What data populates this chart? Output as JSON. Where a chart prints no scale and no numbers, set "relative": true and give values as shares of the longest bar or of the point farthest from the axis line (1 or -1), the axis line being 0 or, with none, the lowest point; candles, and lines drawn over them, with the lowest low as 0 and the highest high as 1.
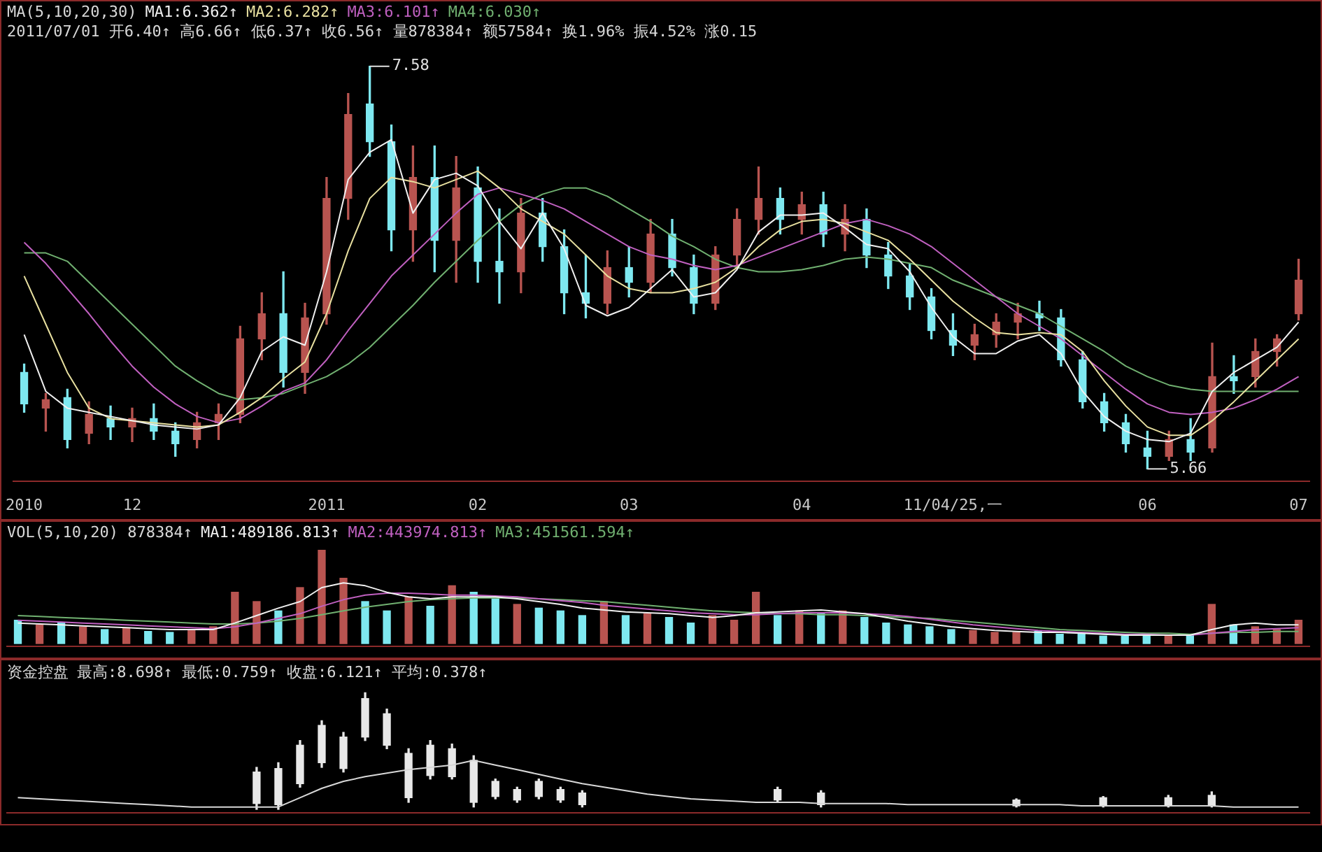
{
  "chart_data": [
    {
      "type": "candlestick",
      "title": "MA(5,10,20,30)",
      "subtitle": "2011/07/01 开6.40↑ 高6.66↑ 低6.37↑ 收6.56↑ 量878384↑ 额57584↑ 换1.96% 振4.52% 涨0.15",
      "legend": "top left",
      "tick_labels": "x",
      "categories": [
        "2010",
        null,
        null,
        null,
        null,
        "12",
        null,
        null,
        null,
        null,
        null,
        null,
        null,
        null,
        "2011",
        null,
        null,
        null,
        null,
        null,
        null,
        "02",
        null,
        null,
        null,
        null,
        null,
        null,
        "03",
        null,
        null,
        null,
        null,
        null,
        null,
        null,
        "04",
        null,
        null,
        null,
        null,
        null,
        null,
        "11/04/25,一",
        null,
        null,
        null,
        null,
        null,
        null,
        null,
        null,
        "06",
        null,
        null,
        null,
        null,
        null,
        null,
        "07"
      ],
      "ohlc": [
        [
          6.12,
          6.16,
          5.93,
          5.97
        ],
        [
          5.95,
          6.02,
          5.84,
          5.99
        ],
        [
          6.0,
          6.04,
          5.76,
          5.8
        ],
        [
          5.83,
          5.98,
          5.78,
          5.92
        ],
        [
          5.9,
          5.96,
          5.8,
          5.86
        ],
        [
          5.86,
          5.95,
          5.79,
          5.9
        ],
        [
          5.9,
          5.97,
          5.8,
          5.84
        ],
        [
          5.84,
          5.88,
          5.72,
          5.78
        ],
        [
          5.8,
          5.93,
          5.76,
          5.88
        ],
        [
          5.88,
          5.97,
          5.8,
          5.92
        ],
        [
          5.92,
          6.34,
          5.88,
          6.28
        ],
        [
          6.28,
          6.5,
          6.18,
          6.4
        ],
        [
          6.4,
          6.6,
          6.05,
          6.12
        ],
        [
          6.12,
          6.45,
          6.02,
          6.38
        ],
        [
          6.4,
          7.05,
          6.35,
          6.95
        ],
        [
          6.95,
          7.45,
          6.85,
          7.35
        ],
        [
          7.4,
          7.58,
          7.15,
          7.22
        ],
        [
          7.22,
          7.3,
          6.7,
          6.8
        ],
        [
          6.8,
          7.2,
          6.65,
          7.05
        ],
        [
          7.05,
          7.2,
          6.6,
          6.75
        ],
        [
          6.75,
          7.15,
          6.55,
          7.0
        ],
        [
          7.0,
          7.1,
          6.55,
          6.65
        ],
        [
          6.65,
          6.9,
          6.45,
          6.6
        ],
        [
          6.6,
          6.95,
          6.5,
          6.88
        ],
        [
          6.88,
          6.95,
          6.65,
          6.72
        ],
        [
          6.72,
          6.8,
          6.4,
          6.5
        ],
        [
          6.5,
          6.68,
          6.38,
          6.45
        ],
        [
          6.45,
          6.7,
          6.4,
          6.62
        ],
        [
          6.62,
          6.72,
          6.48,
          6.55
        ],
        [
          6.55,
          6.85,
          6.5,
          6.78
        ],
        [
          6.78,
          6.85,
          6.58,
          6.62
        ],
        [
          6.62,
          6.68,
          6.4,
          6.45
        ],
        [
          6.45,
          6.72,
          6.42,
          6.68
        ],
        [
          6.68,
          6.9,
          6.62,
          6.85
        ],
        [
          6.85,
          7.1,
          6.78,
          6.95
        ],
        [
          6.95,
          7.0,
          6.78,
          6.85
        ],
        [
          6.85,
          6.98,
          6.78,
          6.92
        ],
        [
          6.92,
          6.98,
          6.72,
          6.78
        ],
        [
          6.78,
          6.92,
          6.7,
          6.85
        ],
        [
          6.85,
          6.9,
          6.62,
          6.68
        ],
        [
          6.68,
          6.74,
          6.52,
          6.58
        ],
        [
          6.58,
          6.64,
          6.42,
          6.48
        ],
        [
          6.48,
          6.52,
          6.28,
          6.32
        ],
        [
          6.32,
          6.4,
          6.2,
          6.25
        ],
        [
          6.25,
          6.35,
          6.18,
          6.3
        ],
        [
          6.3,
          6.4,
          6.24,
          6.36
        ],
        [
          6.36,
          6.45,
          6.28,
          6.4
        ],
        [
          6.4,
          6.46,
          6.32,
          6.38
        ],
        [
          6.38,
          6.42,
          6.15,
          6.18
        ],
        [
          6.18,
          6.22,
          5.95,
          5.98
        ],
        [
          5.98,
          6.02,
          5.84,
          5.88
        ],
        [
          5.88,
          5.92,
          5.74,
          5.78
        ],
        [
          5.76,
          5.84,
          5.66,
          5.72
        ],
        [
          5.72,
          5.84,
          5.7,
          5.8
        ],
        [
          5.8,
          5.9,
          5.7,
          5.74
        ],
        [
          5.76,
          6.26,
          5.74,
          6.1
        ],
        [
          6.1,
          6.2,
          6.02,
          6.08
        ],
        [
          6.1,
          6.28,
          6.05,
          6.22
        ],
        [
          6.22,
          6.3,
          6.15,
          6.28
        ],
        [
          6.4,
          6.66,
          6.37,
          6.56
        ]
      ],
      "colors": [
        "#7ee8f0",
        "#b85450",
        "#7ee8f0",
        "#b85450",
        "#7ee8f0",
        "#b85450",
        "#7ee8f0",
        "#7ee8f0",
        "#b85450",
        "#b85450",
        "#b85450",
        "#b85450",
        "#7ee8f0",
        "#b85450",
        "#b85450",
        "#b85450",
        "#7ee8f0",
        "#7ee8f0",
        "#b85450",
        "#7ee8f0",
        "#b85450",
        "#7ee8f0",
        "#7ee8f0",
        "#b85450",
        "#7ee8f0",
        "#7ee8f0",
        "#7ee8f0",
        "#b85450",
        "#7ee8f0",
        "#b85450",
        "#7ee8f0",
        "#7ee8f0",
        "#b85450",
        "#b85450",
        "#b85450",
        "#7ee8f0",
        "#b85450",
        "#7ee8f0",
        "#b85450",
        "#7ee8f0",
        "#7ee8f0",
        "#7ee8f0",
        "#7ee8f0",
        "#7ee8f0",
        "#b85450",
        "#b85450",
        "#b85450",
        "#7ee8f0",
        "#7ee8f0",
        "#7ee8f0",
        "#7ee8f0",
        "#7ee8f0",
        "#7ee8f0",
        "#b85450",
        "#7ee8f0",
        "#b85450",
        "#7ee8f0",
        "#b85450",
        "#b85450",
        "#b85450"
      ],
      "series": [
        {
          "type": "line",
          "name": "MA1:6.362↑",
          "color": "#f0f0f0",
          "values": [
            6.3,
            6.03,
            5.95,
            5.93,
            5.91,
            5.89,
            5.87,
            5.86,
            5.85,
            5.87,
            6.0,
            6.22,
            6.29,
            6.25,
            6.6,
            7.04,
            7.17,
            7.23,
            6.88,
            7.04,
            7.07,
            7.01,
            6.84,
            6.71,
            6.88,
            6.71,
            6.44,
            6.39,
            6.43,
            6.52,
            6.61,
            6.48,
            6.5,
            6.61,
            6.79,
            6.87,
            6.87,
            6.88,
            6.81,
            6.73,
            6.71,
            6.6,
            6.43,
            6.29,
            6.21,
            6.21,
            6.27,
            6.3,
            6.21,
            6.03,
            5.91,
            5.84,
            5.8,
            5.79,
            5.83,
            6.03,
            6.12,
            6.18,
            6.24,
            6.36
          ]
        },
        {
          "type": "line",
          "name": "MA2:6.282↑",
          "color": "#e8e0a0",
          "values": [
            6.58,
            6.35,
            6.12,
            5.95,
            5.9,
            5.89,
            5.88,
            5.87,
            5.86,
            5.87,
            5.93,
            6.0,
            6.09,
            6.17,
            6.4,
            6.7,
            6.95,
            7.05,
            7.03,
            7.0,
            7.04,
            7.08,
            7.0,
            6.9,
            6.84,
            6.78,
            6.68,
            6.58,
            6.52,
            6.5,
            6.5,
            6.52,
            6.55,
            6.62,
            6.72,
            6.8,
            6.84,
            6.85,
            6.83,
            6.79,
            6.75,
            6.66,
            6.56,
            6.46,
            6.38,
            6.31,
            6.3,
            6.31,
            6.3,
            6.22,
            6.08,
            5.96,
            5.86,
            5.82,
            5.82,
            5.89,
            5.98,
            6.08,
            6.18,
            6.28
          ]
        },
        {
          "type": "line",
          "name": "MA3:6.101↑",
          "color": "#c060c0",
          "values": [
            6.74,
            6.64,
            6.52,
            6.4,
            6.27,
            6.15,
            6.05,
            5.97,
            5.91,
            5.88,
            5.9,
            5.96,
            6.03,
            6.07,
            6.18,
            6.32,
            6.45,
            6.58,
            6.68,
            6.78,
            6.88,
            6.97,
            7.0,
            6.97,
            6.94,
            6.9,
            6.84,
            6.78,
            6.72,
            6.68,
            6.66,
            6.63,
            6.61,
            6.63,
            6.67,
            6.71,
            6.75,
            6.79,
            6.83,
            6.85,
            6.82,
            6.78,
            6.72,
            6.64,
            6.56,
            6.48,
            6.4,
            6.34,
            6.28,
            6.2,
            6.12,
            6.04,
            5.97,
            5.93,
            5.92,
            5.93,
            5.95,
            5.99,
            6.04,
            6.1
          ]
        },
        {
          "type": "line",
          "name": "MA4:6.030↑",
          "color": "#70b070",
          "values": [
            6.69,
            6.69,
            6.65,
            6.55,
            6.45,
            6.35,
            6.25,
            6.15,
            6.08,
            6.02,
            5.99,
            6.0,
            6.02,
            6.06,
            6.1,
            6.16,
            6.24,
            6.34,
            6.44,
            6.55,
            6.65,
            6.75,
            6.84,
            6.92,
            6.97,
            7.0,
            7.0,
            6.96,
            6.9,
            6.84,
            6.77,
            6.72,
            6.66,
            6.62,
            6.6,
            6.6,
            6.61,
            6.63,
            6.66,
            6.67,
            6.66,
            6.64,
            6.62,
            6.56,
            6.52,
            6.48,
            6.44,
            6.4,
            6.34,
            6.28,
            6.22,
            6.15,
            6.1,
            6.06,
            6.04,
            6.03,
            6.03,
            6.03,
            6.03,
            6.03
          ]
        }
      ],
      "annotations": [
        "7.58",
        "5.66"
      ]
    },
    {
      "type": "bar",
      "relative": true,
      "title": "VOL(5,10,20) 878384↑",
      "legend": "top left",
      "tick_labels": false,
      "categories": [
        null,
        null,
        null,
        null,
        null,
        null,
        null,
        null,
        null,
        null,
        null,
        null,
        null,
        null,
        null,
        null,
        null,
        null,
        null,
        null,
        null,
        null,
        null,
        null,
        null,
        null,
        null,
        null,
        null,
        null,
        null,
        null,
        null,
        null,
        null,
        null,
        null,
        null,
        null,
        null,
        null,
        null,
        null,
        null,
        null,
        null,
        null,
        null,
        null,
        null,
        null,
        null,
        null,
        null,
        null,
        null,
        null,
        null,
        null,
        null
      ],
      "series": [
        {
          "type": "bar",
          "colors": [
            "#7ee8f0",
            "#b85450",
            "#7ee8f0",
            "#b85450",
            "#7ee8f0",
            "#b85450",
            "#7ee8f0",
            "#7ee8f0",
            "#b85450",
            "#b85450",
            "#b85450",
            "#b85450",
            "#7ee8f0",
            "#b85450",
            "#b85450",
            "#b85450",
            "#7ee8f0",
            "#7ee8f0",
            "#b85450",
            "#7ee8f0",
            "#b85450",
            "#7ee8f0",
            "#7ee8f0",
            "#b85450",
            "#7ee8f0",
            "#7ee8f0",
            "#7ee8f0",
            "#b85450",
            "#7ee8f0",
            "#b85450",
            "#7ee8f0",
            "#7ee8f0",
            "#b85450",
            "#b85450",
            "#b85450",
            "#7ee8f0",
            "#b85450",
            "#7ee8f0",
            "#b85450",
            "#7ee8f0",
            "#7ee8f0",
            "#7ee8f0",
            "#7ee8f0",
            "#7ee8f0",
            "#b85450",
            "#b85450",
            "#b85450",
            "#7ee8f0",
            "#7ee8f0",
            "#7ee8f0",
            "#7ee8f0",
            "#7ee8f0",
            "#7ee8f0",
            "#b85450",
            "#7ee8f0",
            "#b85450",
            "#7ee8f0",
            "#b85450",
            "#b85450",
            "#b85450"
          ],
          "values": [
            0.25,
            0.2,
            0.22,
            0.18,
            0.15,
            0.17,
            0.13,
            0.12,
            0.15,
            0.18,
            0.55,
            0.45,
            0.35,
            0.6,
            1,
            0.7,
            0.45,
            0.35,
            0.5,
            0.4,
            0.62,
            0.55,
            0.48,
            0.42,
            0.38,
            0.35,
            0.3,
            0.45,
            0.3,
            0.32,
            0.28,
            0.22,
            0.3,
            0.25,
            0.55,
            0.3,
            0.35,
            0.32,
            0.35,
            0.28,
            0.22,
            0.2,
            0.18,
            0.15,
            0.14,
            0.12,
            0.12,
            0.13,
            0.1,
            0.1,
            0.08,
            0.08,
            0.09,
            0.08,
            0.1,
            0.42,
            0.2,
            0.18,
            0.15,
            0.25
          ]
        },
        {
          "type": "line",
          "name": "MA1:489186.813↑",
          "color": "#f0f0f0",
          "values": [
            0.22,
            0.21,
            0.2,
            0.19,
            0.18,
            0.17,
            0.16,
            0.15,
            0.15,
            0.15,
            0.22,
            0.3,
            0.38,
            0.45,
            0.6,
            0.65,
            0.62,
            0.55,
            0.5,
            0.48,
            0.5,
            0.5,
            0.5,
            0.48,
            0.45,
            0.42,
            0.38,
            0.36,
            0.34,
            0.33,
            0.32,
            0.3,
            0.28,
            0.3,
            0.33,
            0.34,
            0.35,
            0.36,
            0.34,
            0.32,
            0.28,
            0.24,
            0.21,
            0.18,
            0.16,
            0.14,
            0.13,
            0.12,
            0.12,
            0.11,
            0.1,
            0.09,
            0.09,
            0.09,
            0.09,
            0.15,
            0.2,
            0.22,
            0.2,
            0.2
          ]
        },
        {
          "type": "line",
          "name": "MA2:443974.813↑",
          "color": "#c060c0",
          "values": [
            0.25,
            0.24,
            0.23,
            0.22,
            0.21,
            0.2,
            0.19,
            0.18,
            0.17,
            0.16,
            0.18,
            0.22,
            0.27,
            0.32,
            0.4,
            0.47,
            0.52,
            0.54,
            0.54,
            0.53,
            0.52,
            0.52,
            0.51,
            0.5,
            0.48,
            0.46,
            0.44,
            0.41,
            0.39,
            0.37,
            0.35,
            0.33,
            0.32,
            0.31,
            0.31,
            0.32,
            0.33,
            0.33,
            0.33,
            0.32,
            0.31,
            0.29,
            0.26,
            0.23,
            0.2,
            0.18,
            0.16,
            0.14,
            0.13,
            0.12,
            0.11,
            0.1,
            0.1,
            0.09,
            0.09,
            0.11,
            0.13,
            0.15,
            0.16,
            0.17
          ]
        },
        {
          "type": "line",
          "name": "MA3:451561.594↑",
          "color": "#70b070",
          "values": [
            0.3,
            0.29,
            0.28,
            0.27,
            0.26,
            0.25,
            0.24,
            0.23,
            0.22,
            0.21,
            0.21,
            0.22,
            0.24,
            0.27,
            0.31,
            0.35,
            0.39,
            0.42,
            0.45,
            0.47,
            0.48,
            0.49,
            0.49,
            0.49,
            0.48,
            0.47,
            0.46,
            0.45,
            0.43,
            0.41,
            0.39,
            0.37,
            0.35,
            0.34,
            0.33,
            0.32,
            0.32,
            0.31,
            0.31,
            0.3,
            0.29,
            0.28,
            0.27,
            0.25,
            0.23,
            0.21,
            0.19,
            0.17,
            0.15,
            0.14,
            0.13,
            0.12,
            0.11,
            0.11,
            0.1,
            0.11,
            0.12,
            0.12,
            0.13,
            0.13
          ]
        }
      ]
    },
    {
      "type": "candlestick",
      "relative": true,
      "title": "资金控盘",
      "subtitle": "最高:8.698↑ 最低:0.759↑ 收盘:6.121↑ 平均:0.378↑",
      "tick_labels": false,
      "color": "#e8e8e8",
      "categories": [
        null,
        null,
        null,
        null,
        null,
        null,
        null,
        null,
        null,
        null,
        null,
        null,
        null,
        null,
        null,
        null,
        null,
        null,
        null,
        null,
        null,
        null,
        null,
        null,
        null,
        null,
        null,
        null,
        null,
        null,
        null,
        null,
        null,
        null,
        null,
        null,
        null,
        null,
        null,
        null,
        null,
        null,
        null,
        null,
        null,
        null,
        null,
        null,
        null,
        null,
        null,
        null,
        null,
        null,
        null,
        null,
        null,
        null,
        null,
        null
      ],
      "ohlc": [
        null,
        null,
        null,
        null,
        null,
        null,
        null,
        null,
        null,
        null,
        null,
        [
          0.05,
          0.36,
          0,
          0.32
        ],
        [
          0.04,
          0.4,
          0,
          0.35
        ],
        [
          0.22,
          0.59,
          0.19,
          0.55
        ],
        [
          0.4,
          0.76,
          0.36,
          0.72
        ],
        [
          0.35,
          0.66,
          0.32,
          0.62
        ],
        [
          0.62,
          1,
          0.59,
          0.95
        ],
        [
          0.55,
          0.86,
          0.52,
          0.82
        ],
        [
          0.1,
          0.52,
          0.06,
          0.48
        ],
        [
          0.29,
          0.59,
          0.26,
          0.55
        ],
        [
          0.28,
          0.56,
          0.26,
          0.52
        ],
        [
          0.06,
          0.46,
          0.02,
          0.42
        ],
        [
          0.11,
          0.26,
          0.09,
          0.24
        ],
        [
          0.08,
          0.19,
          0.06,
          0.17
        ],
        [
          0.11,
          0.26,
          0.09,
          0.24
        ],
        [
          0.08,
          0.19,
          0.06,
          0.17
        ],
        [
          0.04,
          0.16,
          0.02,
          0.14
        ],
        null,
        null,
        null,
        null,
        null,
        null,
        null,
        null,
        [
          0.08,
          0.19,
          0.06,
          0.17
        ],
        null,
        [
          0.04,
          0.16,
          0.02,
          0.14
        ],
        null,
        null,
        null,
        null,
        null,
        null,
        null,
        null,
        [
          0.03,
          0.09,
          0.02,
          0.08
        ],
        null,
        null,
        null,
        [
          0.03,
          0.11,
          0.02,
          0.1
        ],
        null,
        null,
        [
          0.03,
          0.12,
          0.02,
          0.1
        ],
        null,
        [
          0.03,
          0.15,
          0.02,
          0.12
        ],
        null,
        null,
        null,
        null
      ],
      "series": [
        {
          "type": "line",
          "color": "#d8d8d8",
          "values": [
            0.1,
            0.09,
            0.08,
            0.07,
            0.06,
            0.05,
            0.04,
            0.03,
            0.02,
            0.02,
            0.02,
            0.02,
            0.02,
            0.1,
            0.18,
            0.24,
            0.28,
            0.31,
            0.34,
            0.36,
            0.38,
            0.42,
            0.38,
            0.34,
            0.3,
            0.26,
            0.22,
            0.19,
            0.16,
            0.13,
            0.11,
            0.09,
            0.08,
            0.07,
            0.06,
            0.06,
            0.06,
            0.05,
            0.05,
            0.05,
            0.05,
            0.04,
            0.04,
            0.04,
            0.04,
            0.04,
            0.04,
            0.04,
            0.04,
            0.03,
            0.03,
            0.03,
            0.03,
            0.03,
            0.03,
            0.03,
            0.02,
            0.02,
            0.02,
            0.02
          ]
        }
      ]
    }
  ]
}
